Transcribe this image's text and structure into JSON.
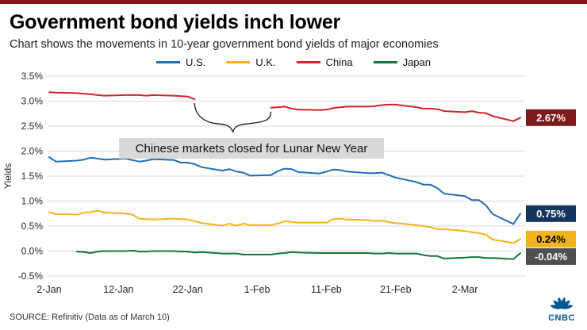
{
  "page": {
    "title": "Government bond yields inch lower",
    "subtitle": "Chart shows the movements in 10-year government bond yields of major economies",
    "source": "SOURCE: Refinitiv (Data as of March 10)",
    "accent_bar_color": "#8a1313",
    "logo_text": "CNBC",
    "logo_color": "#005594"
  },
  "chart_data": {
    "type": "line",
    "ylabel": "Yields",
    "ylim": [
      -0.5,
      3.5
    ],
    "ytick_step": 0.5,
    "ytick_labels": [
      "3.5%",
      "3.0%",
      "2.5%",
      "2.0%",
      "1.5%",
      "1.0%",
      "0.5%",
      "0.0%",
      "-0.5%"
    ],
    "x_domain": [
      0,
      68
    ],
    "x_note": "day offset from 2-Jan to 10-Mar",
    "xticks": [
      {
        "d": 0,
        "label": "2-Jan"
      },
      {
        "d": 10,
        "label": "12-Jan"
      },
      {
        "d": 20,
        "label": "22-Jan"
      },
      {
        "d": 30,
        "label": "1-Feb"
      },
      {
        "d": 40,
        "label": "11-Feb"
      },
      {
        "d": 50,
        "label": "21-Feb"
      },
      {
        "d": 60,
        "label": "2-Mar"
      }
    ],
    "grid": true,
    "legend_position": "top",
    "annotation": {
      "text": "Chinese markets closed for Lunar New Year",
      "bg": "#d9d9d9"
    },
    "series": [
      {
        "name": "U.S.",
        "color": "#1f6eb4",
        "end_label": {
          "text": "0.75%",
          "bg": "#14365c",
          "fg": "#ffffff"
        },
        "segments": [
          [
            [
              0,
              1.88
            ],
            [
              1,
              1.79
            ],
            [
              4,
              1.81
            ],
            [
              5,
              1.83
            ],
            [
              6,
              1.87
            ],
            [
              7,
              1.85
            ],
            [
              8,
              1.83
            ],
            [
              11,
              1.85
            ],
            [
              12,
              1.82
            ],
            [
              13,
              1.79
            ],
            [
              14,
              1.81
            ],
            [
              15,
              1.84
            ],
            [
              18,
              1.82
            ],
            [
              19,
              1.77
            ],
            [
              20,
              1.77
            ],
            [
              21,
              1.74
            ],
            [
              22,
              1.68
            ],
            [
              25,
              1.61
            ],
            [
              26,
              1.64
            ],
            [
              27,
              1.59
            ],
            [
              28,
              1.57
            ],
            [
              29,
              1.51
            ],
            [
              32,
              1.52
            ],
            [
              33,
              1.6
            ],
            [
              34,
              1.65
            ],
            [
              35,
              1.64
            ],
            [
              36,
              1.58
            ],
            [
              39,
              1.55
            ],
            [
              40,
              1.59
            ],
            [
              41,
              1.63
            ],
            [
              42,
              1.62
            ],
            [
              43,
              1.59
            ],
            [
              46,
              1.56
            ],
            [
              47,
              1.56
            ],
            [
              48,
              1.57
            ],
            [
              49,
              1.52
            ],
            [
              50,
              1.47
            ],
            [
              53,
              1.38
            ],
            [
              54,
              1.33
            ],
            [
              55,
              1.33
            ],
            [
              56,
              1.26
            ],
            [
              57,
              1.15
            ],
            [
              60,
              1.1
            ],
            [
              61,
              1.02
            ],
            [
              62,
              1.02
            ],
            [
              63,
              0.92
            ],
            [
              64,
              0.74
            ],
            [
              67,
              0.54
            ],
            [
              68,
              0.75
            ]
          ]
        ]
      },
      {
        "name": "U.K.",
        "color": "#f5b31c",
        "end_label": {
          "text": "0.24%",
          "bg": "#f0b41e",
          "fg": "#000000"
        },
        "segments": [
          [
            [
              0,
              0.78
            ],
            [
              1,
              0.74
            ],
            [
              4,
              0.73
            ],
            [
              5,
              0.77
            ],
            [
              6,
              0.78
            ],
            [
              7,
              0.81
            ],
            [
              8,
              0.77
            ],
            [
              11,
              0.75
            ],
            [
              12,
              0.73
            ],
            [
              13,
              0.65
            ],
            [
              14,
              0.64
            ],
            [
              15,
              0.63
            ],
            [
              18,
              0.65
            ],
            [
              19,
              0.64
            ],
            [
              20,
              0.63
            ],
            [
              21,
              0.6
            ],
            [
              22,
              0.56
            ],
            [
              25,
              0.51
            ],
            [
              26,
              0.55
            ],
            [
              27,
              0.51
            ],
            [
              28,
              0.55
            ],
            [
              29,
              0.52
            ],
            [
              32,
              0.52
            ],
            [
              33,
              0.55
            ],
            [
              34,
              0.6
            ],
            [
              35,
              0.58
            ],
            [
              36,
              0.57
            ],
            [
              39,
              0.57
            ],
            [
              40,
              0.57
            ],
            [
              41,
              0.64
            ],
            [
              42,
              0.65
            ],
            [
              43,
              0.63
            ],
            [
              46,
              0.62
            ],
            [
              47,
              0.6
            ],
            [
              48,
              0.61
            ],
            [
              49,
              0.58
            ],
            [
              50,
              0.56
            ],
            [
              53,
              0.52
            ],
            [
              54,
              0.5
            ],
            [
              55,
              0.48
            ],
            [
              56,
              0.44
            ],
            [
              57,
              0.44
            ],
            [
              60,
              0.4
            ],
            [
              61,
              0.38
            ],
            [
              62,
              0.36
            ],
            [
              63,
              0.33
            ],
            [
              64,
              0.23
            ],
            [
              67,
              0.16
            ],
            [
              68,
              0.24
            ]
          ]
        ]
      },
      {
        "name": "China",
        "color": "#d1232a",
        "end_label": {
          "text": "2.67%",
          "bg": "#7c1a1c",
          "fg": "#ffffff"
        },
        "segments": [
          [
            [
              0,
              3.18
            ],
            [
              1,
              3.17
            ],
            [
              4,
              3.16
            ],
            [
              5,
              3.15
            ],
            [
              6,
              3.14
            ],
            [
              7,
              3.12
            ],
            [
              8,
              3.11
            ],
            [
              11,
              3.12
            ],
            [
              12,
              3.12
            ],
            [
              13,
              3.12
            ],
            [
              14,
              3.11
            ],
            [
              15,
              3.12
            ],
            [
              18,
              3.11
            ],
            [
              19,
              3.1
            ],
            [
              20,
              3.09
            ],
            [
              21,
              3.04
            ]
          ],
          [
            [
              32,
              2.87
            ],
            [
              33,
              2.88
            ],
            [
              34,
              2.89
            ],
            [
              35,
              2.85
            ],
            [
              36,
              2.83
            ],
            [
              39,
              2.82
            ],
            [
              40,
              2.83
            ],
            [
              41,
              2.86
            ],
            [
              42,
              2.88
            ],
            [
              43,
              2.89
            ],
            [
              46,
              2.89
            ],
            [
              47,
              2.9
            ],
            [
              48,
              2.92
            ],
            [
              49,
              2.93
            ],
            [
              50,
              2.93
            ],
            [
              53,
              2.88
            ],
            [
              54,
              2.85
            ],
            [
              55,
              2.85
            ],
            [
              56,
              2.84
            ],
            [
              57,
              2.8
            ],
            [
              60,
              2.78
            ],
            [
              61,
              2.8
            ],
            [
              62,
              2.77
            ],
            [
              63,
              2.76
            ],
            [
              64,
              2.7
            ],
            [
              67,
              2.6
            ],
            [
              68,
              2.67
            ]
          ]
        ]
      },
      {
        "name": "Japan",
        "color": "#12763c",
        "end_label": {
          "text": "-0.04%",
          "bg": "#4f4f4f",
          "fg": "#ffffff"
        },
        "segments": [
          [
            [
              4,
              -0.01
            ],
            [
              5,
              -0.02
            ],
            [
              6,
              -0.04
            ],
            [
              7,
              -0.01
            ],
            [
              8,
              0.0
            ],
            [
              11,
              0.0
            ],
            [
              12,
              0.01
            ],
            [
              13,
              -0.01
            ],
            [
              14,
              -0.01
            ],
            [
              15,
              0.0
            ],
            [
              18,
              0.0
            ],
            [
              19,
              -0.01
            ],
            [
              20,
              -0.01
            ],
            [
              21,
              -0.03
            ],
            [
              22,
              -0.02
            ],
            [
              25,
              -0.05
            ],
            [
              26,
              -0.05
            ],
            [
              27,
              -0.05
            ],
            [
              28,
              -0.07
            ],
            [
              29,
              -0.07
            ],
            [
              32,
              -0.07
            ],
            [
              33,
              -0.05
            ],
            [
              34,
              -0.04
            ],
            [
              35,
              -0.02
            ],
            [
              36,
              -0.03
            ],
            [
              39,
              -0.04
            ],
            [
              41,
              -0.04
            ],
            [
              42,
              -0.04
            ],
            [
              43,
              -0.04
            ],
            [
              46,
              -0.04
            ],
            [
              47,
              -0.05
            ],
            [
              48,
              -0.05
            ],
            [
              49,
              -0.04
            ],
            [
              50,
              -0.05
            ],
            [
              53,
              -0.05
            ],
            [
              54,
              -0.08
            ],
            [
              55,
              -0.1
            ],
            [
              56,
              -0.1
            ],
            [
              57,
              -0.15
            ],
            [
              60,
              -0.13
            ],
            [
              61,
              -0.12
            ],
            [
              62,
              -0.12
            ],
            [
              63,
              -0.14
            ],
            [
              64,
              -0.14
            ],
            [
              67,
              -0.16
            ],
            [
              68,
              -0.04
            ]
          ]
        ]
      }
    ]
  }
}
